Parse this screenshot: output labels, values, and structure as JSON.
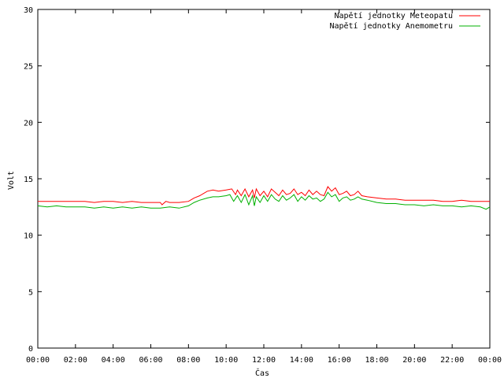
{
  "chart_data": {
    "type": "line",
    "xlabel": "Čas",
    "ylabel": "Volt",
    "xlim": [
      0,
      24
    ],
    "ylim": [
      0,
      30
    ],
    "x_ticks": [
      {
        "v": 0,
        "label": "00:00"
      },
      {
        "v": 2,
        "label": "02:00"
      },
      {
        "v": 4,
        "label": "04:00"
      },
      {
        "v": 6,
        "label": "06:00"
      },
      {
        "v": 8,
        "label": "08:00"
      },
      {
        "v": 10,
        "label": "10:00"
      },
      {
        "v": 12,
        "label": "12:00"
      },
      {
        "v": 14,
        "label": "14:00"
      },
      {
        "v": 16,
        "label": "16:00"
      },
      {
        "v": 18,
        "label": "18:00"
      },
      {
        "v": 20,
        "label": "20:00"
      },
      {
        "v": 22,
        "label": "22:00"
      },
      {
        "v": 24,
        "label": "00:00"
      }
    ],
    "y_ticks": [
      {
        "v": 0,
        "label": "0"
      },
      {
        "v": 5,
        "label": "5"
      },
      {
        "v": 10,
        "label": "10"
      },
      {
        "v": 15,
        "label": "15"
      },
      {
        "v": 20,
        "label": "20"
      },
      {
        "v": 25,
        "label": "25"
      },
      {
        "v": 30,
        "label": "30"
      }
    ],
    "grid": false,
    "legend_position": "top-right",
    "series": [
      {
        "name": "Napětí jednotky Meteopatu",
        "color": "#ff0000",
        "x": [
          0,
          0.5,
          1,
          1.5,
          2,
          2.5,
          3,
          3.5,
          4,
          4.5,
          5,
          5.5,
          6,
          6.5,
          6.6,
          6.8,
          7,
          7.5,
          8,
          8.3,
          8.6,
          9,
          9.3,
          9.6,
          10,
          10.3,
          10.5,
          10.6,
          10.8,
          11,
          11.2,
          11.4,
          11.5,
          11.6,
          11.8,
          12,
          12.2,
          12.4,
          12.6,
          12.8,
          13,
          13.2,
          13.4,
          13.6,
          13.8,
          14,
          14.2,
          14.4,
          14.6,
          14.8,
          15,
          15.2,
          15.4,
          15.6,
          15.8,
          16,
          16.2,
          16.4,
          16.6,
          16.8,
          17,
          17.2,
          17.5,
          18,
          18.5,
          19,
          19.5,
          20,
          20.5,
          21,
          21.5,
          22,
          22.5,
          23,
          23.5,
          24
        ],
        "y": [
          13.0,
          13.0,
          13.0,
          13.0,
          13.0,
          13.0,
          12.9,
          13.0,
          13.0,
          12.9,
          13.0,
          12.9,
          12.9,
          12.9,
          12.7,
          13.0,
          12.9,
          12.9,
          13.0,
          13.3,
          13.5,
          13.9,
          14.0,
          13.9,
          14.0,
          14.1,
          13.6,
          14.0,
          13.5,
          14.1,
          13.4,
          14.0,
          13.3,
          14.1,
          13.5,
          13.9,
          13.4,
          14.1,
          13.8,
          13.5,
          14.0,
          13.6,
          13.7,
          14.1,
          13.6,
          13.8,
          13.5,
          14.0,
          13.6,
          13.9,
          13.6,
          13.5,
          14.3,
          13.9,
          14.2,
          13.6,
          13.7,
          13.9,
          13.5,
          13.6,
          13.9,
          13.5,
          13.4,
          13.3,
          13.2,
          13.2,
          13.1,
          13.1,
          13.1,
          13.1,
          13.0,
          13.0,
          13.1,
          13.0,
          13.0,
          13.0
        ]
      },
      {
        "name": "Napětí jednotky Anemometru",
        "color": "#00b000",
        "x": [
          0,
          0.5,
          1,
          1.5,
          2,
          2.5,
          3,
          3.5,
          4,
          4.5,
          5,
          5.5,
          6,
          6.5,
          7,
          7.5,
          8,
          8.3,
          8.6,
          9,
          9.3,
          9.6,
          10,
          10.2,
          10.4,
          10.6,
          10.8,
          11,
          11.2,
          11.4,
          11.5,
          11.6,
          11.8,
          12,
          12.2,
          12.4,
          12.6,
          12.8,
          13,
          13.2,
          13.4,
          13.6,
          13.8,
          14,
          14.2,
          14.4,
          14.6,
          14.8,
          15,
          15.2,
          15.4,
          15.6,
          15.8,
          16,
          16.2,
          16.4,
          16.6,
          16.8,
          17,
          17.2,
          17.5,
          18,
          18.5,
          19,
          19.5,
          20,
          20.5,
          21,
          21.5,
          22,
          22.5,
          23,
          23.5,
          23.8,
          24
        ],
        "y": [
          12.6,
          12.5,
          12.6,
          12.5,
          12.5,
          12.5,
          12.4,
          12.5,
          12.4,
          12.5,
          12.4,
          12.5,
          12.4,
          12.4,
          12.5,
          12.4,
          12.6,
          12.9,
          13.1,
          13.3,
          13.4,
          13.4,
          13.5,
          13.6,
          13.0,
          13.5,
          12.9,
          13.6,
          12.7,
          13.5,
          12.6,
          13.4,
          12.9,
          13.5,
          13.0,
          13.6,
          13.2,
          13.0,
          13.5,
          13.1,
          13.3,
          13.6,
          13.0,
          13.4,
          13.1,
          13.5,
          13.2,
          13.3,
          13.0,
          13.2,
          13.8,
          13.4,
          13.6,
          13.0,
          13.3,
          13.4,
          13.1,
          13.2,
          13.4,
          13.2,
          13.1,
          12.9,
          12.8,
          12.8,
          12.7,
          12.7,
          12.6,
          12.7,
          12.6,
          12.6,
          12.5,
          12.6,
          12.5,
          12.3,
          12.5
        ]
      }
    ]
  }
}
